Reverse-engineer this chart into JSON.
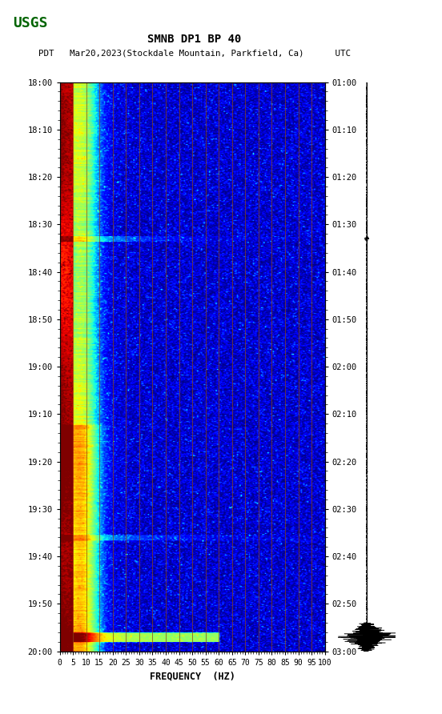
{
  "title_line1": "SMNB DP1 BP 40",
  "title_line2": "PDT   Mar20,2023(Stockdale Mountain, Parkfield, Ca)      UTC",
  "xlabel": "FREQUENCY  (HZ)",
  "freq_ticks": [
    0,
    5,
    10,
    15,
    20,
    25,
    30,
    35,
    40,
    45,
    50,
    55,
    60,
    65,
    70,
    75,
    80,
    85,
    90,
    95,
    100
  ],
  "freq_min": 0,
  "freq_max": 100,
  "time_left_labels": [
    "18:00",
    "18:10",
    "18:20",
    "18:30",
    "18:40",
    "18:50",
    "19:00",
    "19:10",
    "19:20",
    "19:30",
    "19:40",
    "19:50",
    "20:00"
  ],
  "time_right_labels": [
    "01:00",
    "01:10",
    "01:20",
    "01:30",
    "01:40",
    "01:50",
    "02:00",
    "02:10",
    "02:20",
    "02:30",
    "02:40",
    "02:50",
    "03:00"
  ],
  "time_tick_minutes": [
    0,
    10,
    20,
    30,
    40,
    50,
    60,
    70,
    80,
    90,
    100,
    110,
    120
  ],
  "vertical_lines_freq": [
    5,
    10,
    15,
    20,
    25,
    30,
    35,
    40,
    45,
    50,
    55,
    60,
    65,
    70,
    75,
    80,
    85,
    90,
    95
  ],
  "vline_color": "#8B4513",
  "background_color": "#ffffff",
  "spectrogram_bg": "#0000CC",
  "colormap": "jet",
  "fig_width": 5.52,
  "fig_height": 8.92,
  "dpi": 100,
  "noise_seed": 42
}
